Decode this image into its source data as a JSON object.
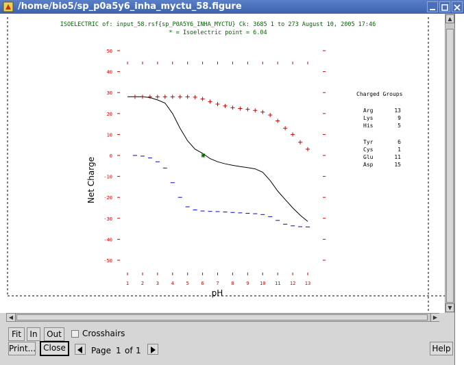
{
  "window": {
    "title": "/home/bio5/sp_p0a5y6_inha_myctu_58.figure"
  },
  "chart_data": {
    "type": "line",
    "title": "ISOELECTRIC of: input_58.rsf{sp_P0A5Y6_INHA_MYCTU}  Ck: 3685  1 to 273  August 10, 2005 17:46",
    "subtitle": "* = Isoelectric point = 6.04",
    "xlabel": "pH",
    "ylabel": "Net Charge",
    "xlim": [
      1,
      13
    ],
    "ylim": [
      -50,
      50
    ],
    "x_ticks": [
      "1",
      "2",
      "3",
      "4",
      "5",
      "6",
      "7",
      "8",
      "9",
      "10",
      "11",
      "12",
      "13"
    ],
    "y_ticks": [
      "50",
      "40",
      "30",
      "20",
      "10",
      "0",
      "-10",
      "-20",
      "-30",
      "-40",
      "-50"
    ],
    "isoelectric_point": 6.04,
    "series": [
      {
        "values": [
          [
            1,
            28
          ],
          [
            2,
            28
          ],
          [
            2.5,
            27.6
          ],
          [
            3,
            26.5
          ],
          [
            3.5,
            25
          ],
          [
            4,
            20
          ],
          [
            4.5,
            13
          ],
          [
            5,
            7
          ],
          [
            5.5,
            3
          ],
          [
            6,
            1
          ],
          [
            6.5,
            -1.5
          ],
          [
            7,
            -3
          ],
          [
            7.5,
            -4
          ],
          [
            8,
            -4.7
          ],
          [
            8.5,
            -5.3
          ],
          [
            9,
            -5.8
          ],
          [
            9.5,
            -6.4
          ],
          [
            10,
            -8
          ],
          [
            10.5,
            -12
          ],
          [
            11,
            -17
          ],
          [
            11.5,
            -21
          ],
          [
            12,
            -25
          ],
          [
            12.5,
            -28.5
          ],
          [
            13,
            -31.5
          ]
        ]
      },
      {
        "marker": "+",
        "color": "#cc0000",
        "values": [
          [
            1.5,
            28
          ],
          [
            2,
            28
          ],
          [
            2.5,
            28
          ],
          [
            3,
            28
          ],
          [
            3.5,
            28
          ],
          [
            4,
            28
          ],
          [
            4.5,
            28
          ],
          [
            5,
            28
          ],
          [
            5.5,
            27.8
          ],
          [
            6,
            27
          ],
          [
            6.5,
            25.7
          ],
          [
            7,
            24.5
          ],
          [
            7.5,
            23.6
          ],
          [
            8,
            22.8
          ],
          [
            8.5,
            22.4
          ],
          [
            9,
            22
          ],
          [
            9.5,
            21.5
          ],
          [
            10,
            20.7
          ],
          [
            10.5,
            19.3
          ],
          [
            11,
            16.5
          ],
          [
            11.5,
            13
          ],
          [
            12,
            10
          ],
          [
            12.5,
            6.3
          ],
          [
            13,
            3
          ]
        ]
      },
      {
        "marker": "-",
        "color": "#0000cc",
        "values": [
          [
            1.5,
            0
          ],
          [
            2,
            -0.3
          ],
          [
            2.5,
            -1.2
          ],
          [
            3,
            -3
          ],
          [
            3.5,
            -6
          ],
          [
            4,
            -13
          ],
          [
            4.5,
            -20
          ],
          [
            5,
            -24.5
          ],
          [
            5.5,
            -26
          ],
          [
            6,
            -26.5
          ],
          [
            6.5,
            -26.7
          ],
          [
            7,
            -26.8
          ],
          [
            7.5,
            -27
          ],
          [
            8,
            -27.2
          ],
          [
            8.5,
            -27.4
          ],
          [
            9,
            -27.6
          ],
          [
            9.5,
            -27.8
          ],
          [
            10,
            -28.2
          ],
          [
            10.5,
            -29.2
          ],
          [
            11,
            -31
          ],
          [
            11.5,
            -32.8
          ],
          [
            12,
            -33.6
          ],
          [
            12.5,
            -34
          ],
          [
            13,
            -34.1
          ]
        ]
      }
    ],
    "legend": {
      "title": "Charged Groups",
      "groups": [
        [
          {
            "name": "Arg",
            "count": "13"
          },
          {
            "name": "Lys",
            "count": "9"
          },
          {
            "name": "His",
            "count": "5"
          }
        ],
        [
          {
            "name": "Tyr",
            "count": "6"
          },
          {
            "name": "Cys",
            "count": "1"
          },
          {
            "name": "Glu",
            "count": "11"
          },
          {
            "name": "Asp",
            "count": "15"
          }
        ]
      ]
    },
    "colors": {
      "axis": "#cc0000",
      "text": "#006600",
      "curve": "#000000"
    }
  },
  "controls": {
    "fit": "Fit",
    "in": "In",
    "out": "Out",
    "crosshairs": "Crosshairs",
    "print": "Print...",
    "close": "Close",
    "page_label": "Page",
    "page_current": "1",
    "page_of": "of",
    "page_total": "1",
    "help": "Help"
  }
}
